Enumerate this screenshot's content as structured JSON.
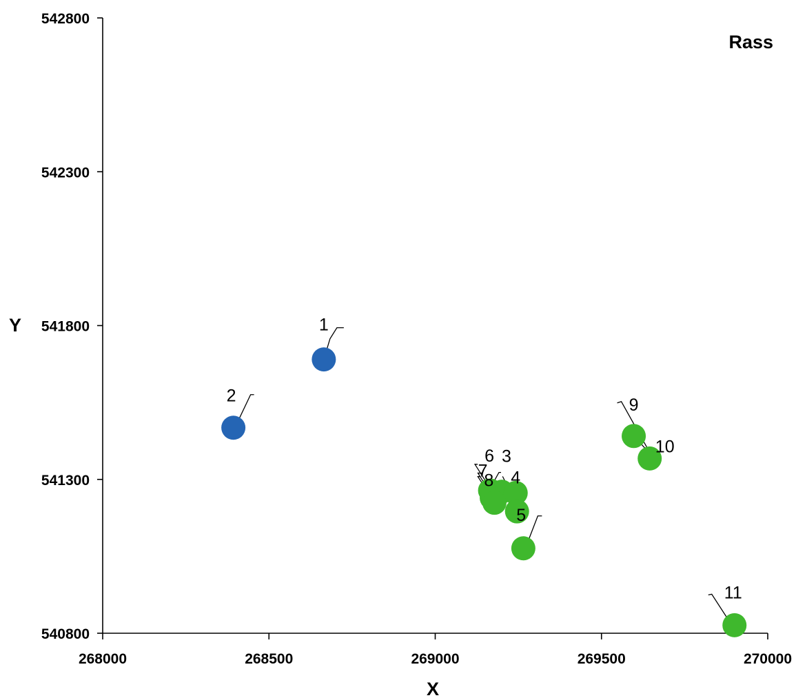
{
  "chart_data": {
    "type": "scatter",
    "title": "Rass",
    "xlabel": "X",
    "ylabel": "Y",
    "xlim": [
      268000,
      270000
    ],
    "ylim": [
      540800,
      542800
    ],
    "x_ticks": [
      268000,
      268500,
      269000,
      269500,
      270000
    ],
    "y_ticks": [
      540800,
      541300,
      541800,
      542300,
      542800
    ],
    "x_tick_labels": [
      "268000",
      "268500",
      "269000",
      "269500",
      "270000"
    ],
    "y_tick_labels": [
      "540800",
      "541300",
      "541800",
      "542300",
      "542800"
    ],
    "grid": false,
    "legend": "none",
    "colors": {
      "blue": "#2565b4",
      "green": "#3fb82d"
    },
    "series": [
      {
        "color": "blue",
        "points": [
          {
            "label": "1",
            "x": 268665,
            "y": 541690
          },
          {
            "label": "2",
            "x": 268393,
            "y": 541468
          }
        ]
      },
      {
        "color": "green",
        "points": [
          {
            "label": "3",
            "x": 269200,
            "y": 541260
          },
          {
            "label": "4",
            "x": 269242,
            "y": 541256
          },
          {
            "label": "5",
            "x": 269246,
            "y": 541196
          },
          {
            "label": "6",
            "x": 269165,
            "y": 541264
          },
          {
            "label": "7",
            "x": 269170,
            "y": 541240
          },
          {
            "label": "8",
            "x": 269178,
            "y": 541224
          },
          {
            "label": "",
            "x": 269265,
            "y": 541076
          },
          {
            "label": "9",
            "x": 269597,
            "y": 541441
          },
          {
            "label": "10",
            "x": 269645,
            "y": 541368
          },
          {
            "label": "11",
            "x": 269900,
            "y": 540826
          }
        ]
      }
    ]
  }
}
